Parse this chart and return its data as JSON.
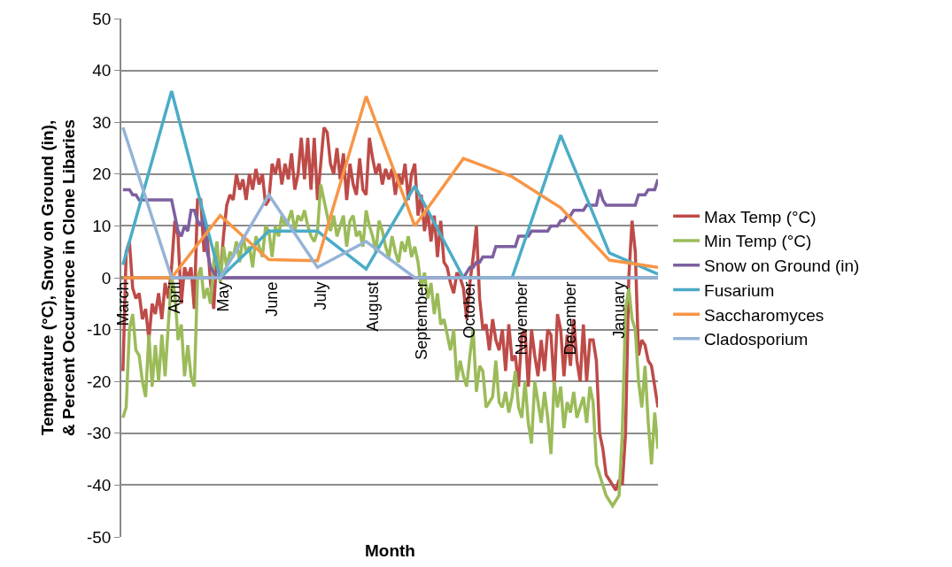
{
  "chart_data": {
    "type": "line",
    "xlabel": "Month",
    "ylabel": "Temperature (°C), Snow on Ground (in), & Percent Occurrence in Clone Libaries",
    "categories": [
      "March",
      null,
      null,
      null,
      null,
      null,
      null,
      null,
      null,
      null,
      null,
      null,
      null,
      null,
      null,
      null,
      "April",
      null,
      null,
      null,
      null,
      null,
      null,
      null,
      null,
      null,
      null,
      null,
      null,
      null,
      null,
      "May",
      null,
      null,
      null,
      null,
      null,
      null,
      null,
      null,
      null,
      null,
      null,
      null,
      null,
      null,
      "June",
      null,
      null,
      null,
      null,
      null,
      null,
      null,
      null,
      null,
      null,
      null,
      null,
      null,
      null,
      "July",
      null,
      null,
      null,
      null,
      null,
      null,
      null,
      null,
      null,
      null,
      null,
      null,
      null,
      null,
      null,
      "August",
      null,
      null,
      null,
      null,
      null,
      null,
      null,
      null,
      null,
      null,
      null,
      null,
      null,
      null,
      "September",
      null,
      null,
      null,
      null,
      null,
      null,
      null,
      null,
      null,
      null,
      null,
      null,
      null,
      null,
      "October",
      null,
      null,
      null,
      null,
      null,
      null,
      null,
      null,
      null,
      null,
      null,
      null,
      null,
      null,
      null,
      "November",
      null,
      null,
      null,
      null,
      null,
      null,
      null,
      null,
      null,
      null,
      null,
      null,
      null,
      null,
      "December",
      null,
      null,
      null,
      null,
      null,
      null,
      null,
      null,
      null,
      null,
      null,
      null,
      null,
      null,
      "January",
      null,
      null,
      null,
      null,
      null,
      null,
      null,
      null,
      null,
      null,
      null,
      null
    ],
    "ylim": [
      -50,
      50
    ],
    "yticks": [
      -50,
      -40,
      -30,
      -20,
      -10,
      0,
      10,
      20,
      30,
      40,
      50
    ],
    "grid": "y",
    "legend": "right",
    "marker": "none",
    "line_style": "solid",
    "series": [
      {
        "name": "Max Temp (°C)",
        "color": "#be4b48",
        "values": [
          -18,
          5,
          7,
          -2,
          -4,
          -3,
          -8,
          -6,
          -12,
          -5,
          -7,
          -3,
          -8,
          -1,
          -4,
          2,
          11,
          8,
          -5,
          2,
          0,
          2,
          -6,
          15,
          15,
          5,
          8,
          -1,
          -6,
          5,
          0,
          8,
          14,
          16,
          15,
          20,
          17,
          19,
          15,
          20,
          17,
          21,
          18,
          20,
          14,
          15,
          22,
          20,
          23,
          18,
          22,
          19,
          24,
          17,
          20,
          27,
          19,
          27,
          17,
          27,
          15,
          22,
          29,
          28,
          22,
          20,
          25,
          19,
          24,
          15,
          22,
          18,
          16,
          23,
          17,
          16,
          27,
          23,
          20,
          22,
          18,
          21,
          19,
          21,
          16,
          20,
          18,
          22,
          15,
          20,
          22,
          12,
          16,
          9,
          13,
          7,
          12,
          4,
          11,
          3,
          2,
          -1,
          -3,
          1,
          0,
          -2,
          -8,
          -1,
          4,
          10,
          -4,
          -10,
          -9,
          -14,
          -8,
          -12,
          -14,
          -10,
          -18,
          -9,
          -16,
          -15,
          -21,
          -11,
          -10,
          -21,
          -10,
          -15,
          -19,
          -12,
          -18,
          -10,
          -11,
          -21,
          -7,
          -10,
          -19,
          -11,
          -17,
          -8,
          -16,
          -20,
          -9,
          -20,
          -12,
          -12,
          -16,
          -30,
          -33,
          -38,
          -39,
          -40,
          -41,
          -39,
          -40,
          -30,
          0,
          11,
          5,
          -15,
          -12,
          -13,
          -16,
          -17,
          -21,
          -25
        ]
      },
      {
        "name": "Min Temp (°C)",
        "color": "#9bbb59",
        "values": [
          -27,
          -25,
          -10,
          -7,
          -14,
          -15,
          -20,
          -23,
          -11,
          -21,
          -13,
          -20,
          -11,
          -19,
          -9,
          0,
          -3,
          -12,
          -9,
          -19,
          -13,
          -19,
          -21,
          0,
          2,
          -4,
          -2,
          -5,
          3,
          7,
          -1,
          6,
          2,
          5,
          4,
          7,
          3,
          8,
          5,
          6,
          2,
          8,
          6,
          4,
          10,
          9,
          4,
          10,
          8,
          12,
          10,
          11,
          13,
          9,
          12,
          11,
          13,
          10,
          8,
          7,
          9,
          18,
          15,
          12,
          9,
          12,
          8,
          10,
          12,
          6,
          11,
          12,
          8,
          9,
          6,
          13,
          10,
          8,
          5,
          11,
          9,
          6,
          4,
          8,
          5,
          3,
          7,
          5,
          8,
          4,
          6,
          3,
          -2,
          1,
          -4,
          -1,
          -7,
          -3,
          -9,
          -8,
          -11,
          -14,
          -10,
          -20,
          -16,
          -19,
          -21,
          -15,
          -10,
          -22,
          -17,
          -18,
          -25,
          -24,
          -23,
          -16,
          -24,
          -25,
          -22,
          -26,
          -23,
          -18,
          -25,
          -27,
          -20,
          -28,
          -32,
          -20,
          -24,
          -28,
          -22,
          -27,
          -34,
          -20,
          -25,
          -21,
          -29,
          -24,
          -26,
          -22,
          -27,
          -25,
          -23,
          -28,
          -21,
          -24,
          -36,
          -38,
          -40,
          -42,
          -43,
          -44,
          -43,
          -42,
          -30,
          -6,
          -2,
          -8,
          -10,
          -20,
          -25,
          -17,
          -28,
          -36,
          -26,
          -33
        ]
      },
      {
        "name": "Snow on Ground (in)",
        "color": "#7d60a0",
        "values": [
          17,
          17,
          17,
          16,
          16,
          15,
          15,
          15,
          15,
          15,
          15,
          15,
          15,
          15,
          15,
          15,
          12,
          9,
          8,
          10,
          9,
          13,
          13,
          11,
          10,
          12,
          5,
          2,
          1,
          0,
          0,
          0,
          0,
          0,
          0,
          0,
          0,
          0,
          0,
          0,
          0,
          0,
          0,
          0,
          0,
          0,
          0,
          0,
          0,
          0,
          0,
          0,
          0,
          0,
          0,
          0,
          0,
          0,
          0,
          0,
          0,
          0,
          0,
          0,
          0,
          0,
          0,
          0,
          0,
          0,
          0,
          0,
          0,
          0,
          0,
          0,
          0,
          0,
          0,
          0,
          0,
          0,
          0,
          0,
          0,
          0,
          0,
          0,
          0,
          0,
          0,
          0,
          0,
          0,
          0,
          0,
          0,
          0,
          0,
          0,
          0,
          0,
          0,
          0,
          0,
          0,
          1,
          2,
          2,
          3,
          3,
          4,
          4,
          4,
          4,
          6,
          6,
          6,
          6,
          6,
          6,
          6,
          8,
          8,
          8,
          8,
          9,
          9,
          9,
          9,
          9,
          9,
          10,
          10,
          10,
          11,
          11,
          12,
          12,
          13,
          13,
          13,
          13,
          14,
          14,
          14,
          14,
          17,
          15,
          14,
          14,
          14,
          14,
          14,
          14,
          14,
          14,
          14,
          14,
          16,
          16,
          16,
          17,
          17,
          17,
          19
        ]
      },
      {
        "name": "Fusarium",
        "color": "#4bacc6",
        "values": [
          2.5,
          null,
          null,
          null,
          null,
          null,
          null,
          null,
          null,
          null,
          null,
          null,
          null,
          null,
          null,
          36,
          null,
          null,
          null,
          null,
          null,
          null,
          null,
          null,
          null,
          null,
          null,
          null,
          null,
          null,
          0,
          null,
          null,
          null,
          null,
          null,
          null,
          null,
          null,
          null,
          null,
          null,
          null,
          null,
          null,
          9,
          null,
          null,
          null,
          null,
          null,
          null,
          null,
          null,
          null,
          null,
          null,
          null,
          null,
          null,
          9,
          null,
          null,
          null,
          null,
          null,
          null,
          null,
          null,
          null,
          null,
          null,
          null,
          null,
          null,
          1.7,
          null,
          null,
          null,
          null,
          null,
          null,
          null,
          null,
          null,
          null,
          null,
          null,
          null,
          null,
          17.7,
          null,
          null,
          null,
          null,
          null,
          null,
          null,
          null,
          null,
          null,
          null,
          null,
          null,
          null,
          0,
          null,
          null,
          null,
          null,
          null,
          null,
          null,
          null,
          null,
          null,
          null,
          null,
          null,
          null,
          0,
          null,
          null,
          null,
          null,
          null,
          null,
          null,
          null,
          null,
          null,
          null,
          null,
          null,
          null,
          27.5,
          null,
          null,
          null,
          null,
          null,
          null,
          null,
          null,
          null,
          null,
          null,
          null,
          null,
          null,
          4.8,
          null,
          null,
          null,
          null,
          null,
          null,
          null,
          null,
          null,
          null,
          null,
          null,
          null,
          null,
          0.7
        ]
      },
      {
        "name": "Saccharomyces",
        "color": "#f79646",
        "values": [
          0,
          null,
          null,
          null,
          null,
          null,
          null,
          null,
          null,
          null,
          null,
          null,
          null,
          null,
          null,
          0,
          null,
          null,
          null,
          null,
          null,
          null,
          null,
          null,
          null,
          null,
          null,
          null,
          null,
          null,
          12,
          null,
          null,
          null,
          null,
          null,
          null,
          null,
          null,
          null,
          null,
          null,
          null,
          null,
          null,
          3.5,
          null,
          null,
          null,
          null,
          null,
          null,
          null,
          null,
          null,
          null,
          null,
          null,
          null,
          null,
          3.3,
          null,
          null,
          null,
          null,
          null,
          null,
          null,
          null,
          null,
          null,
          null,
          null,
          null,
          null,
          35,
          null,
          null,
          null,
          null,
          null,
          null,
          null,
          null,
          null,
          null,
          null,
          null,
          null,
          null,
          10,
          null,
          null,
          null,
          null,
          null,
          null,
          null,
          null,
          null,
          null,
          null,
          null,
          null,
          null,
          23,
          null,
          null,
          null,
          null,
          null,
          null,
          null,
          null,
          null,
          null,
          null,
          null,
          null,
          null,
          19.5,
          null,
          null,
          null,
          null,
          null,
          null,
          null,
          null,
          null,
          null,
          null,
          null,
          null,
          null,
          13.5,
          null,
          null,
          null,
          null,
          null,
          null,
          null,
          null,
          null,
          null,
          null,
          null,
          null,
          null,
          3.4,
          null,
          null,
          null,
          null,
          null,
          null,
          null,
          null,
          null,
          null,
          null,
          null,
          null,
          null,
          2
        ]
      },
      {
        "name": "Cladosporium",
        "color": "#95b3d7",
        "values": [
          29,
          null,
          null,
          null,
          null,
          null,
          null,
          null,
          null,
          null,
          null,
          null,
          null,
          null,
          null,
          0,
          null,
          null,
          null,
          null,
          null,
          null,
          null,
          null,
          null,
          null,
          null,
          null,
          null,
          null,
          0,
          null,
          null,
          null,
          null,
          null,
          null,
          null,
          null,
          null,
          null,
          null,
          null,
          null,
          null,
          16,
          null,
          null,
          null,
          null,
          null,
          null,
          null,
          null,
          null,
          null,
          null,
          null,
          null,
          null,
          2,
          null,
          null,
          null,
          null,
          null,
          null,
          null,
          null,
          null,
          null,
          null,
          null,
          null,
          null,
          7,
          null,
          null,
          null,
          null,
          null,
          null,
          null,
          null,
          null,
          null,
          null,
          null,
          null,
          null,
          0,
          null,
          null,
          null,
          null,
          null,
          null,
          null,
          null,
          null,
          null,
          null,
          null,
          null,
          null,
          0,
          null,
          null,
          null,
          null,
          null,
          null,
          null,
          null,
          null,
          null,
          null,
          null,
          null,
          null,
          0,
          null,
          null,
          null,
          null,
          null,
          null,
          null,
          null,
          null,
          null,
          null,
          null,
          null,
          null,
          0,
          null,
          null,
          null,
          null,
          null,
          null,
          null,
          null,
          null,
          null,
          null,
          null,
          null,
          null,
          0,
          null,
          null,
          null,
          null,
          null,
          null,
          null,
          null,
          null,
          null,
          null,
          null,
          null,
          null,
          0
        ]
      }
    ]
  }
}
